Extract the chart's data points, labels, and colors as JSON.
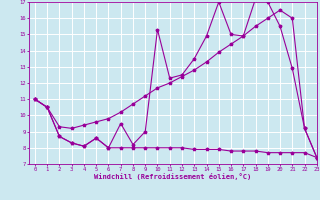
{
  "xlabel": "Windchill (Refroidissement éolien,°C)",
  "background_color": "#cce8f0",
  "grid_color": "#ffffff",
  "line_color": "#990099",
  "x_values": [
    0,
    1,
    2,
    3,
    4,
    5,
    6,
    7,
    8,
    9,
    10,
    11,
    12,
    13,
    14,
    15,
    16,
    17,
    18,
    19,
    20,
    21,
    22,
    23
  ],
  "line1_y": [
    11.0,
    10.5,
    8.7,
    8.3,
    8.1,
    8.6,
    8.0,
    9.5,
    8.2,
    9.0,
    15.3,
    12.3,
    12.5,
    13.5,
    14.9,
    17.0,
    15.0,
    14.9,
    17.2,
    17.0,
    15.5,
    12.9,
    9.2,
    7.4
  ],
  "line2_y": [
    11.0,
    10.5,
    9.3,
    9.2,
    9.4,
    9.6,
    9.8,
    10.2,
    10.7,
    11.2,
    11.7,
    12.0,
    12.4,
    12.8,
    13.3,
    13.9,
    14.4,
    14.9,
    15.5,
    16.0,
    16.5,
    16.0,
    9.2,
    7.4
  ],
  "line3_y": [
    11.0,
    10.5,
    8.7,
    8.3,
    8.1,
    8.6,
    8.0,
    8.0,
    8.0,
    8.0,
    8.0,
    8.0,
    8.0,
    7.9,
    7.9,
    7.9,
    7.8,
    7.8,
    7.8,
    7.7,
    7.7,
    7.7,
    7.7,
    7.4
  ],
  "xlim": [
    -0.5,
    23
  ],
  "ylim": [
    7,
    17
  ],
  "yticks": [
    7,
    8,
    9,
    10,
    11,
    12,
    13,
    14,
    15,
    16,
    17
  ],
  "xticks": [
    0,
    1,
    2,
    3,
    4,
    5,
    6,
    7,
    8,
    9,
    10,
    11,
    12,
    13,
    14,
    15,
    16,
    17,
    18,
    19,
    20,
    21,
    22,
    23
  ],
  "tick_fontsize": 4.0,
  "label_fontsize": 5.0,
  "linewidth": 0.8,
  "markersize": 2.5
}
